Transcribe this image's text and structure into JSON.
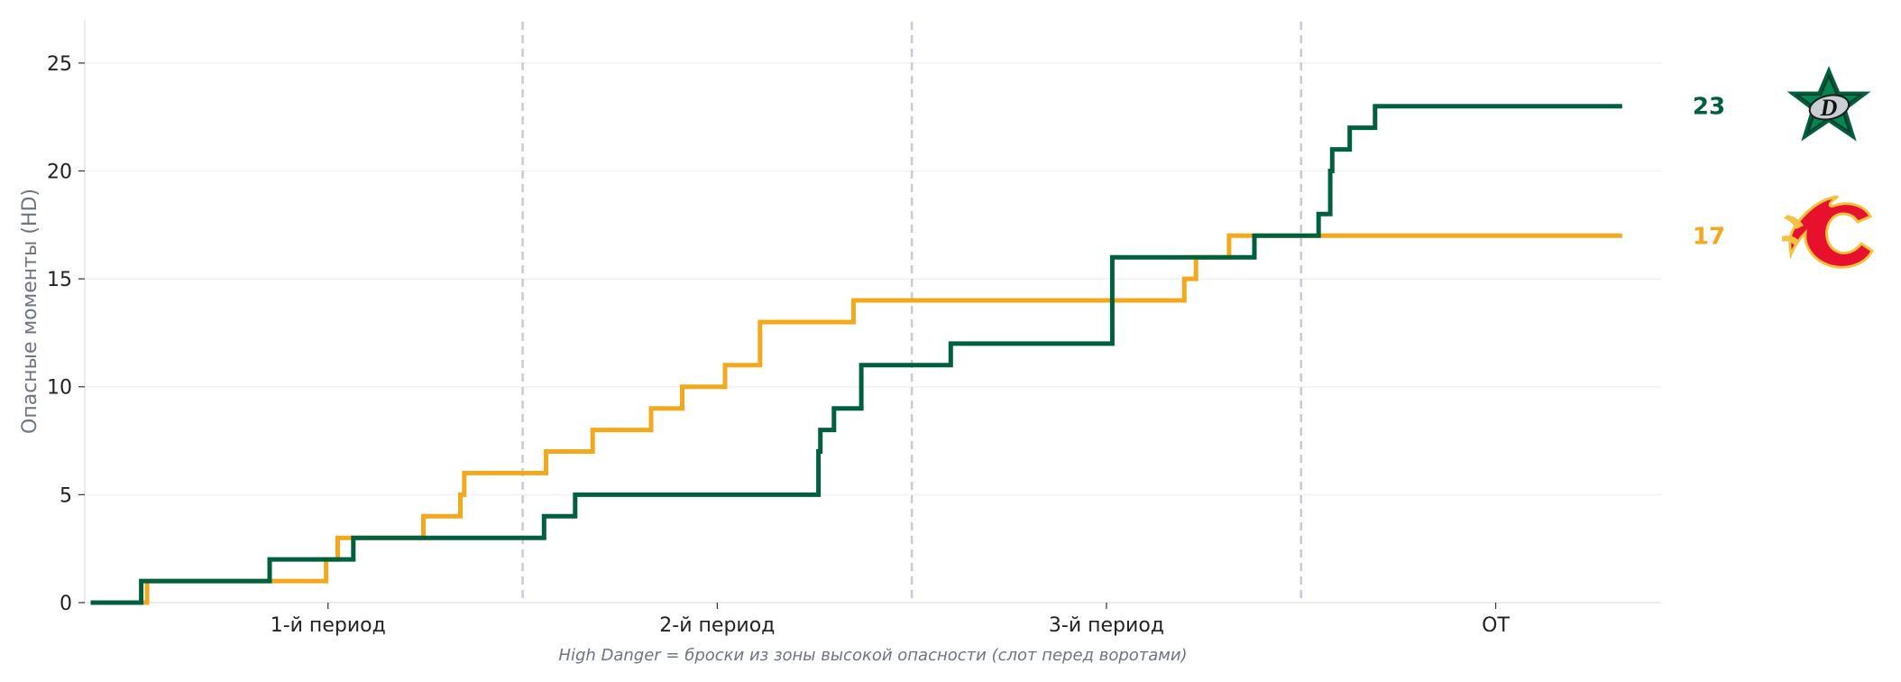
{
  "chart_data": {
    "type": "line",
    "step": true,
    "xlabel": "",
    "ylabel": "Опасные моменты (HD)",
    "caption": "High Danger = броски из зоны высокой опасности (слот перед воротами)",
    "ylim": [
      0,
      27
    ],
    "yticks": [
      0,
      5,
      10,
      15,
      20,
      25
    ],
    "xlim": [
      -2.5,
      78.5
    ],
    "xticks": [
      {
        "label": "1-й период",
        "value": 10
      },
      {
        "label": "2-й период",
        "value": 30
      },
      {
        "label": "3-й период",
        "value": 50
      },
      {
        "label": "OT",
        "value": 70
      }
    ],
    "period_dividers": [
      20,
      40,
      60
    ],
    "grid": "horizontal",
    "series": [
      {
        "team": "Dallas Stars",
        "color": "#00603e",
        "final": "23",
        "logo": "dallas-stars-logo",
        "x": [
          -2.2,
          0.4,
          0.6,
          7.0,
          8.2,
          11.3,
          13.2,
          14.5,
          21.1,
          22.7,
          28.8,
          35.2,
          35.3,
          35.6,
          36.0,
          37.4,
          39.5,
          42.0,
          50.3,
          50.3,
          50.3,
          57.6,
          59.7,
          60.5,
          60.9,
          61.4,
          61.5,
          61.5,
          61.6,
          61.7,
          61.9,
          62.5,
          63.8,
          76.5
        ],
        "y": [
          0,
          1,
          1,
          2,
          2,
          3,
          3,
          3,
          4,
          5,
          5,
          7,
          8,
          8,
          9,
          11,
          11,
          12,
          12,
          14,
          16,
          17,
          17,
          17,
          18,
          18,
          19,
          20,
          21,
          21,
          21,
          22,
          23,
          23
        ]
      },
      {
        "team": "Calgary Flames",
        "color": "#f4a81e",
        "final": "17",
        "logo": "calgary-flames-logo",
        "x": [
          -2.2,
          0.7,
          0.9,
          9.9,
          10.5,
          14.9,
          16.8,
          17.0,
          18.9,
          20.1,
          20.3,
          21.2,
          23.6,
          26.6,
          27.0,
          28.2,
          30.4,
          32.2,
          33.3,
          34.2,
          37.0,
          38.7,
          39.6,
          40.0,
          43.5,
          45.3,
          46.1,
          54.0,
          54.6,
          56.3,
          58.5,
          63.0,
          76.5
        ],
        "y": [
          0,
          1,
          1,
          2,
          3,
          4,
          5,
          6,
          6,
          6,
          6,
          7,
          8,
          9,
          9,
          10,
          11,
          13,
          13,
          13,
          14,
          14,
          14,
          14,
          14,
          14,
          14,
          15,
          16,
          17,
          17,
          17,
          17
        ]
      }
    ]
  }
}
